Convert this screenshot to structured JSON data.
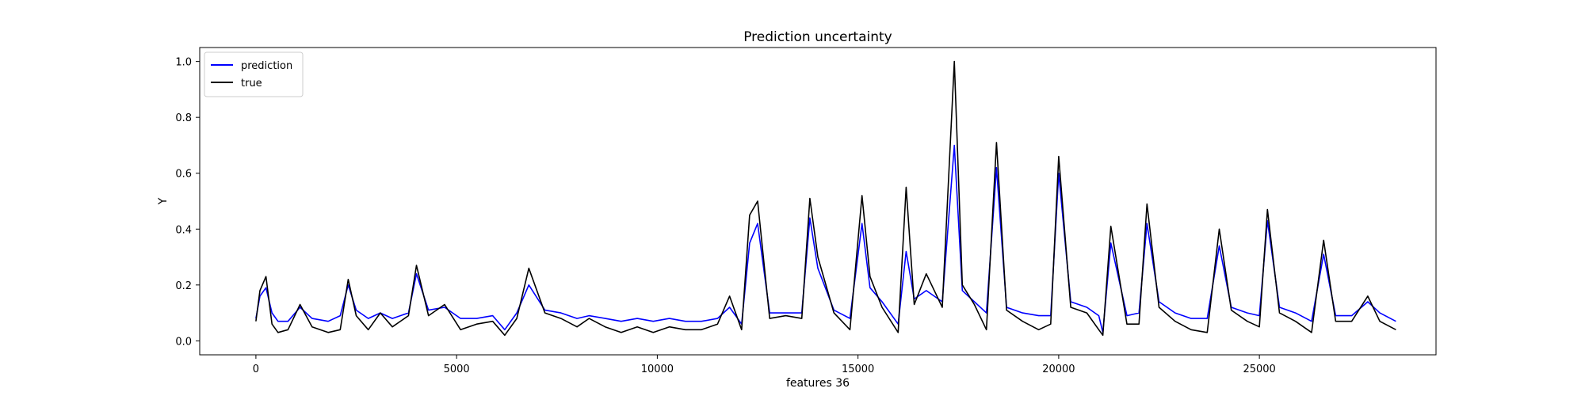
{
  "chart_data": {
    "type": "line",
    "title": "Prediction uncertainty",
    "xlabel": "features 36",
    "ylabel": "Y",
    "xlim": [
      -1400,
      29400
    ],
    "ylim": [
      -0.05,
      1.05
    ],
    "xticks": [
      0,
      5000,
      10000,
      15000,
      20000,
      25000
    ],
    "yticks": [
      0.0,
      0.2,
      0.4,
      0.6,
      0.8,
      1.0
    ],
    "xtick_labels": [
      "0",
      "5000",
      "10000",
      "15000",
      "20000",
      "25000"
    ],
    "ytick_labels": [
      "0.0",
      "0.2",
      "0.4",
      "0.6",
      "0.8",
      "1.0"
    ],
    "grid": false,
    "legend": {
      "position": "top-left",
      "entries": [
        "prediction",
        "true"
      ]
    },
    "colors": {
      "prediction": "#0000ff",
      "true": "#000000"
    },
    "series": [
      {
        "name": "prediction",
        "color": "#0000ff",
        "x": [
          0,
          100,
          250,
          400,
          550,
          800,
          1100,
          1400,
          1800,
          2100,
          2300,
          2500,
          2800,
          3100,
          3400,
          3800,
          4000,
          4300,
          4700,
          5100,
          5500,
          5900,
          6200,
          6500,
          6800,
          7200,
          7600,
          8000,
          8300,
          8700,
          9100,
          9500,
          9900,
          10300,
          10700,
          11100,
          11500,
          11800,
          12100,
          12300,
          12500,
          12800,
          13200,
          13600,
          13800,
          14000,
          14400,
          14800,
          15100,
          15300,
          15600,
          16000,
          16200,
          16400,
          16700,
          17100,
          17400,
          17600,
          17900,
          18200,
          18450,
          18700,
          19100,
          19500,
          19800,
          20000,
          20300,
          20700,
          21000,
          21100,
          21300,
          21700,
          22000,
          22200,
          22500,
          22900,
          23300,
          23700,
          24000,
          24300,
          24700,
          25000,
          25200,
          25500,
          25900,
          26300,
          26600,
          26900,
          27300,
          27700,
          28000,
          28400
        ],
        "y": [
          0.08,
          0.16,
          0.19,
          0.1,
          0.07,
          0.07,
          0.12,
          0.08,
          0.07,
          0.09,
          0.2,
          0.11,
          0.08,
          0.1,
          0.08,
          0.1,
          0.24,
          0.11,
          0.12,
          0.08,
          0.08,
          0.09,
          0.04,
          0.1,
          0.2,
          0.11,
          0.1,
          0.08,
          0.09,
          0.08,
          0.07,
          0.08,
          0.07,
          0.08,
          0.07,
          0.07,
          0.08,
          0.12,
          0.06,
          0.35,
          0.42,
          0.1,
          0.1,
          0.1,
          0.44,
          0.26,
          0.11,
          0.08,
          0.42,
          0.19,
          0.14,
          0.06,
          0.32,
          0.15,
          0.18,
          0.14,
          0.7,
          0.18,
          0.14,
          0.1,
          0.62,
          0.12,
          0.1,
          0.09,
          0.09,
          0.6,
          0.14,
          0.12,
          0.09,
          0.03,
          0.35,
          0.09,
          0.1,
          0.42,
          0.14,
          0.1,
          0.08,
          0.08,
          0.34,
          0.12,
          0.1,
          0.09,
          0.43,
          0.12,
          0.1,
          0.07,
          0.31,
          0.09,
          0.09,
          0.14,
          0.1,
          0.07
        ]
      },
      {
        "name": "true",
        "color": "#000000",
        "x": [
          0,
          100,
          250,
          400,
          550,
          800,
          1100,
          1400,
          1800,
          2100,
          2300,
          2500,
          2800,
          3100,
          3400,
          3800,
          4000,
          4300,
          4700,
          5100,
          5500,
          5900,
          6200,
          6500,
          6800,
          7200,
          7600,
          8000,
          8300,
          8700,
          9100,
          9500,
          9900,
          10300,
          10700,
          11100,
          11500,
          11800,
          12100,
          12300,
          12500,
          12800,
          13200,
          13600,
          13800,
          14000,
          14400,
          14800,
          15100,
          15300,
          15600,
          16000,
          16200,
          16400,
          16700,
          17100,
          17400,
          17600,
          17900,
          18200,
          18450,
          18700,
          19100,
          19500,
          19800,
          20000,
          20300,
          20700,
          21000,
          21100,
          21300,
          21700,
          22000,
          22200,
          22500,
          22900,
          23300,
          23700,
          24000,
          24300,
          24700,
          25000,
          25200,
          25500,
          25900,
          26300,
          26600,
          26900,
          27300,
          27700,
          28000,
          28400
        ],
        "y": [
          0.07,
          0.18,
          0.23,
          0.06,
          0.03,
          0.04,
          0.13,
          0.05,
          0.03,
          0.04,
          0.22,
          0.09,
          0.04,
          0.1,
          0.05,
          0.09,
          0.27,
          0.09,
          0.13,
          0.04,
          0.06,
          0.07,
          0.02,
          0.08,
          0.26,
          0.1,
          0.08,
          0.05,
          0.08,
          0.05,
          0.03,
          0.05,
          0.03,
          0.05,
          0.04,
          0.04,
          0.06,
          0.16,
          0.04,
          0.45,
          0.5,
          0.08,
          0.09,
          0.08,
          0.51,
          0.3,
          0.1,
          0.04,
          0.52,
          0.23,
          0.12,
          0.03,
          0.55,
          0.13,
          0.24,
          0.12,
          1.0,
          0.2,
          0.13,
          0.04,
          0.71,
          0.11,
          0.07,
          0.04,
          0.06,
          0.66,
          0.12,
          0.1,
          0.04,
          0.02,
          0.41,
          0.06,
          0.06,
          0.49,
          0.12,
          0.07,
          0.04,
          0.03,
          0.4,
          0.11,
          0.07,
          0.05,
          0.47,
          0.1,
          0.07,
          0.03,
          0.36,
          0.07,
          0.07,
          0.16,
          0.07,
          0.04
        ]
      }
    ]
  }
}
